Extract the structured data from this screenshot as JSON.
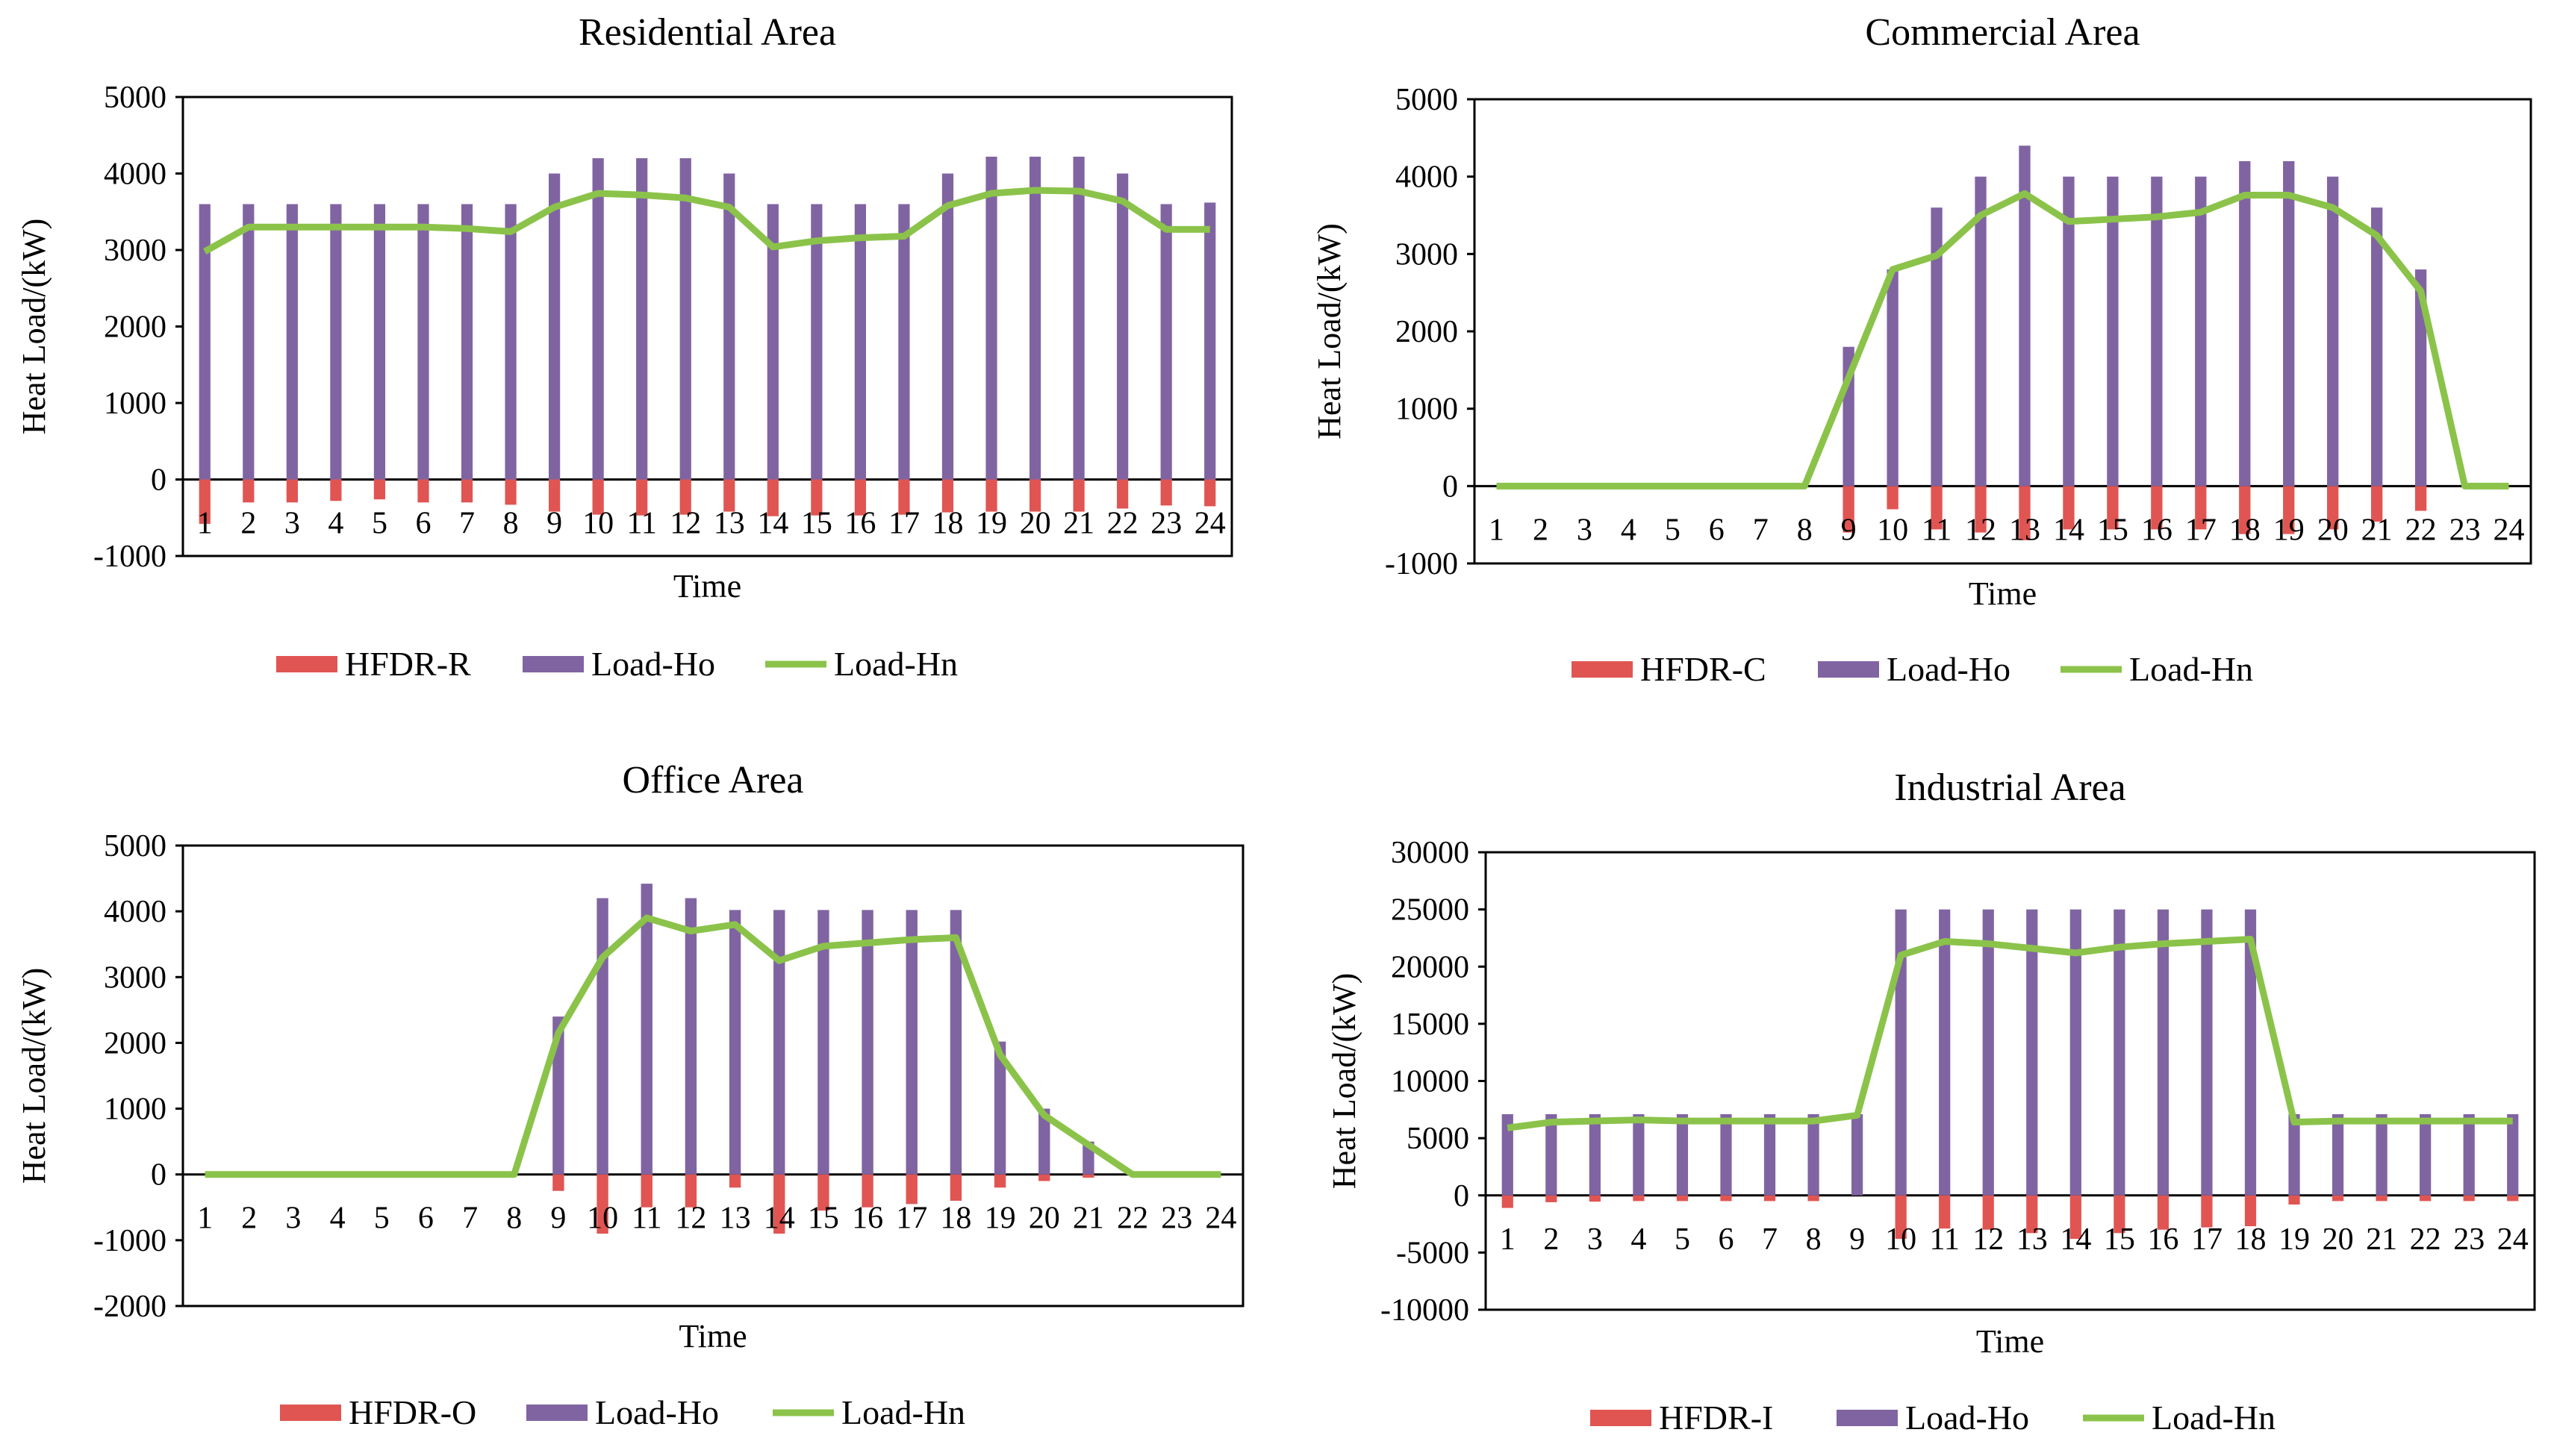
{
  "chart_data": [
    {
      "type": "bar",
      "title": "Residential Area",
      "xlabel": "Time",
      "ylabel": "Heat Load/(kW)",
      "ylim": [
        -1000,
        5000
      ],
      "yticks": [
        -1000,
        0,
        1000,
        2000,
        3000,
        4000,
        5000
      ],
      "categories": [
        "1",
        "2",
        "3",
        "4",
        "5",
        "6",
        "7",
        "8",
        "9",
        "10",
        "11",
        "12",
        "13",
        "14",
        "15",
        "16",
        "17",
        "18",
        "19",
        "20",
        "21",
        "22",
        "23",
        "24"
      ],
      "series": [
        {
          "name": "HFDR-R",
          "kind": "bar",
          "color": "#e05552",
          "values": [
            -580,
            -300,
            -300,
            -280,
            -260,
            -300,
            -300,
            -330,
            -420,
            -460,
            -470,
            -460,
            -420,
            -480,
            -470,
            -470,
            -460,
            -430,
            -420,
            -420,
            -420,
            -380,
            -340,
            -350
          ]
        },
        {
          "name": "Load-Ho",
          "kind": "bar",
          "color": "#8064a2",
          "values": [
            3600,
            3600,
            3600,
            3600,
            3600,
            3600,
            3600,
            3600,
            4000,
            4200,
            4200,
            4200,
            4000,
            3600,
            3600,
            3600,
            3600,
            4000,
            4220,
            4220,
            4220,
            4000,
            3600,
            3620
          ]
        },
        {
          "name": "Load-Hn",
          "kind": "line",
          "color": "#8bc34a",
          "values": [
            2980,
            3300,
            3300,
            3300,
            3300,
            3300,
            3280,
            3240,
            3560,
            3740,
            3720,
            3680,
            3560,
            3040,
            3120,
            3160,
            3180,
            3580,
            3740,
            3780,
            3770,
            3640,
            3270,
            3270
          ]
        }
      ]
    },
    {
      "type": "bar",
      "title": "Commercial  Area",
      "xlabel": "Time",
      "ylabel": "Heat Load/(kW)",
      "ylim": [
        -1000,
        5000
      ],
      "yticks": [
        -1000,
        0,
        1000,
        2000,
        3000,
        4000,
        5000
      ],
      "categories": [
        "1",
        "2",
        "3",
        "4",
        "5",
        "6",
        "7",
        "8",
        "9",
        "10",
        "11",
        "12",
        "13",
        "14",
        "15",
        "16",
        "17",
        "18",
        "19",
        "20",
        "21",
        "22",
        "23",
        "24"
      ],
      "series": [
        {
          "name": "HFDR-C",
          "kind": "bar",
          "color": "#e05552",
          "values": [
            0,
            0,
            0,
            0,
            0,
            0,
            0,
            0,
            -600,
            -300,
            -560,
            -600,
            -700,
            -560,
            -560,
            -560,
            -560,
            -620,
            -620,
            -560,
            -460,
            -320,
            0,
            0
          ]
        },
        {
          "name": "Load-Ho",
          "kind": "bar",
          "color": "#8064a2",
          "values": [
            0,
            0,
            0,
            0,
            0,
            0,
            0,
            0,
            1800,
            2800,
            3600,
            4000,
            4400,
            4000,
            4000,
            4000,
            4000,
            4200,
            4200,
            4000,
            3600,
            2800,
            0,
            0
          ]
        },
        {
          "name": "Load-Hn",
          "kind": "line",
          "color": "#8bc34a",
          "values": [
            0,
            0,
            0,
            0,
            0,
            0,
            0,
            0,
            1400,
            2800,
            2980,
            3500,
            3780,
            3420,
            3450,
            3480,
            3540,
            3760,
            3760,
            3600,
            3240,
            2520,
            0,
            0
          ]
        }
      ]
    },
    {
      "type": "bar",
      "title": "Office Area",
      "xlabel": "Time",
      "ylabel": "Heat Load/(kW)",
      "ylim": [
        -2000,
        5000
      ],
      "yticks": [
        -2000,
        -1000,
        0,
        1000,
        2000,
        3000,
        4000,
        5000
      ],
      "categories": [
        "1",
        "2",
        "3",
        "4",
        "5",
        "6",
        "7",
        "8",
        "9",
        "10",
        "11",
        "12",
        "13",
        "14",
        "15",
        "16",
        "17",
        "18",
        "19",
        "20",
        "21",
        "22",
        "23",
        "24"
      ],
      "series": [
        {
          "name": "HFDR-O",
          "kind": "bar",
          "color": "#e05552",
          "values": [
            0,
            0,
            0,
            0,
            0,
            0,
            0,
            0,
            -250,
            -900,
            -500,
            -500,
            -200,
            -900,
            -550,
            -500,
            -450,
            -400,
            -200,
            -100,
            -50,
            0,
            0,
            0
          ]
        },
        {
          "name": "Load-Ho",
          "kind": "bar",
          "color": "#8064a2",
          "values": [
            0,
            0,
            0,
            0,
            0,
            0,
            0,
            0,
            2400,
            4200,
            4420,
            4200,
            4020,
            4020,
            4020,
            4020,
            4020,
            4020,
            2020,
            1000,
            500,
            0,
            0,
            0
          ]
        },
        {
          "name": "Load-Hn",
          "kind": "line",
          "color": "#8bc34a",
          "values": [
            0,
            0,
            0,
            0,
            0,
            0,
            0,
            0,
            2150,
            3300,
            3900,
            3700,
            3800,
            3250,
            3470,
            3520,
            3570,
            3600,
            1820,
            900,
            450,
            0,
            0,
            0
          ]
        }
      ]
    },
    {
      "type": "bar",
      "title": "Industrial  Area",
      "xlabel": "Time",
      "ylabel": "Heat Load/(kW)",
      "ylim": [
        -10000,
        30000
      ],
      "yticks": [
        -10000,
        -5000,
        0,
        5000,
        10000,
        15000,
        20000,
        25000,
        30000
      ],
      "categories": [
        "1",
        "2",
        "3",
        "4",
        "5",
        "6",
        "7",
        "8",
        "9",
        "10",
        "11",
        "12",
        "13",
        "14",
        "15",
        "16",
        "17",
        "18",
        "19",
        "20",
        "21",
        "22",
        "23",
        "24"
      ],
      "series": [
        {
          "name": "HFDR-I",
          "kind": "bar",
          "color": "#e05552",
          "values": [
            -1100,
            -600,
            -550,
            -500,
            -500,
            -500,
            -500,
            -500,
            0,
            -3800,
            -2900,
            -3000,
            -3300,
            -3800,
            -3300,
            -3000,
            -2800,
            -2700,
            -800,
            -500,
            -500,
            -500,
            -500,
            -500
          ]
        },
        {
          "name": "Load-Ho",
          "kind": "bar",
          "color": "#8064a2",
          "values": [
            7100,
            7100,
            7100,
            7100,
            7100,
            7100,
            7100,
            7100,
            7100,
            25000,
            25000,
            25000,
            25000,
            25000,
            25000,
            25000,
            25000,
            25000,
            7100,
            7100,
            7100,
            7100,
            7100,
            7100
          ]
        },
        {
          "name": "Load-Hn",
          "kind": "line",
          "color": "#8bc34a",
          "values": [
            5900,
            6400,
            6500,
            6600,
            6500,
            6500,
            6500,
            6500,
            7000,
            21000,
            22200,
            22000,
            21600,
            21200,
            21700,
            22000,
            22200,
            22400,
            6400,
            6500,
            6500,
            6500,
            6500,
            6500
          ]
        }
      ]
    }
  ]
}
